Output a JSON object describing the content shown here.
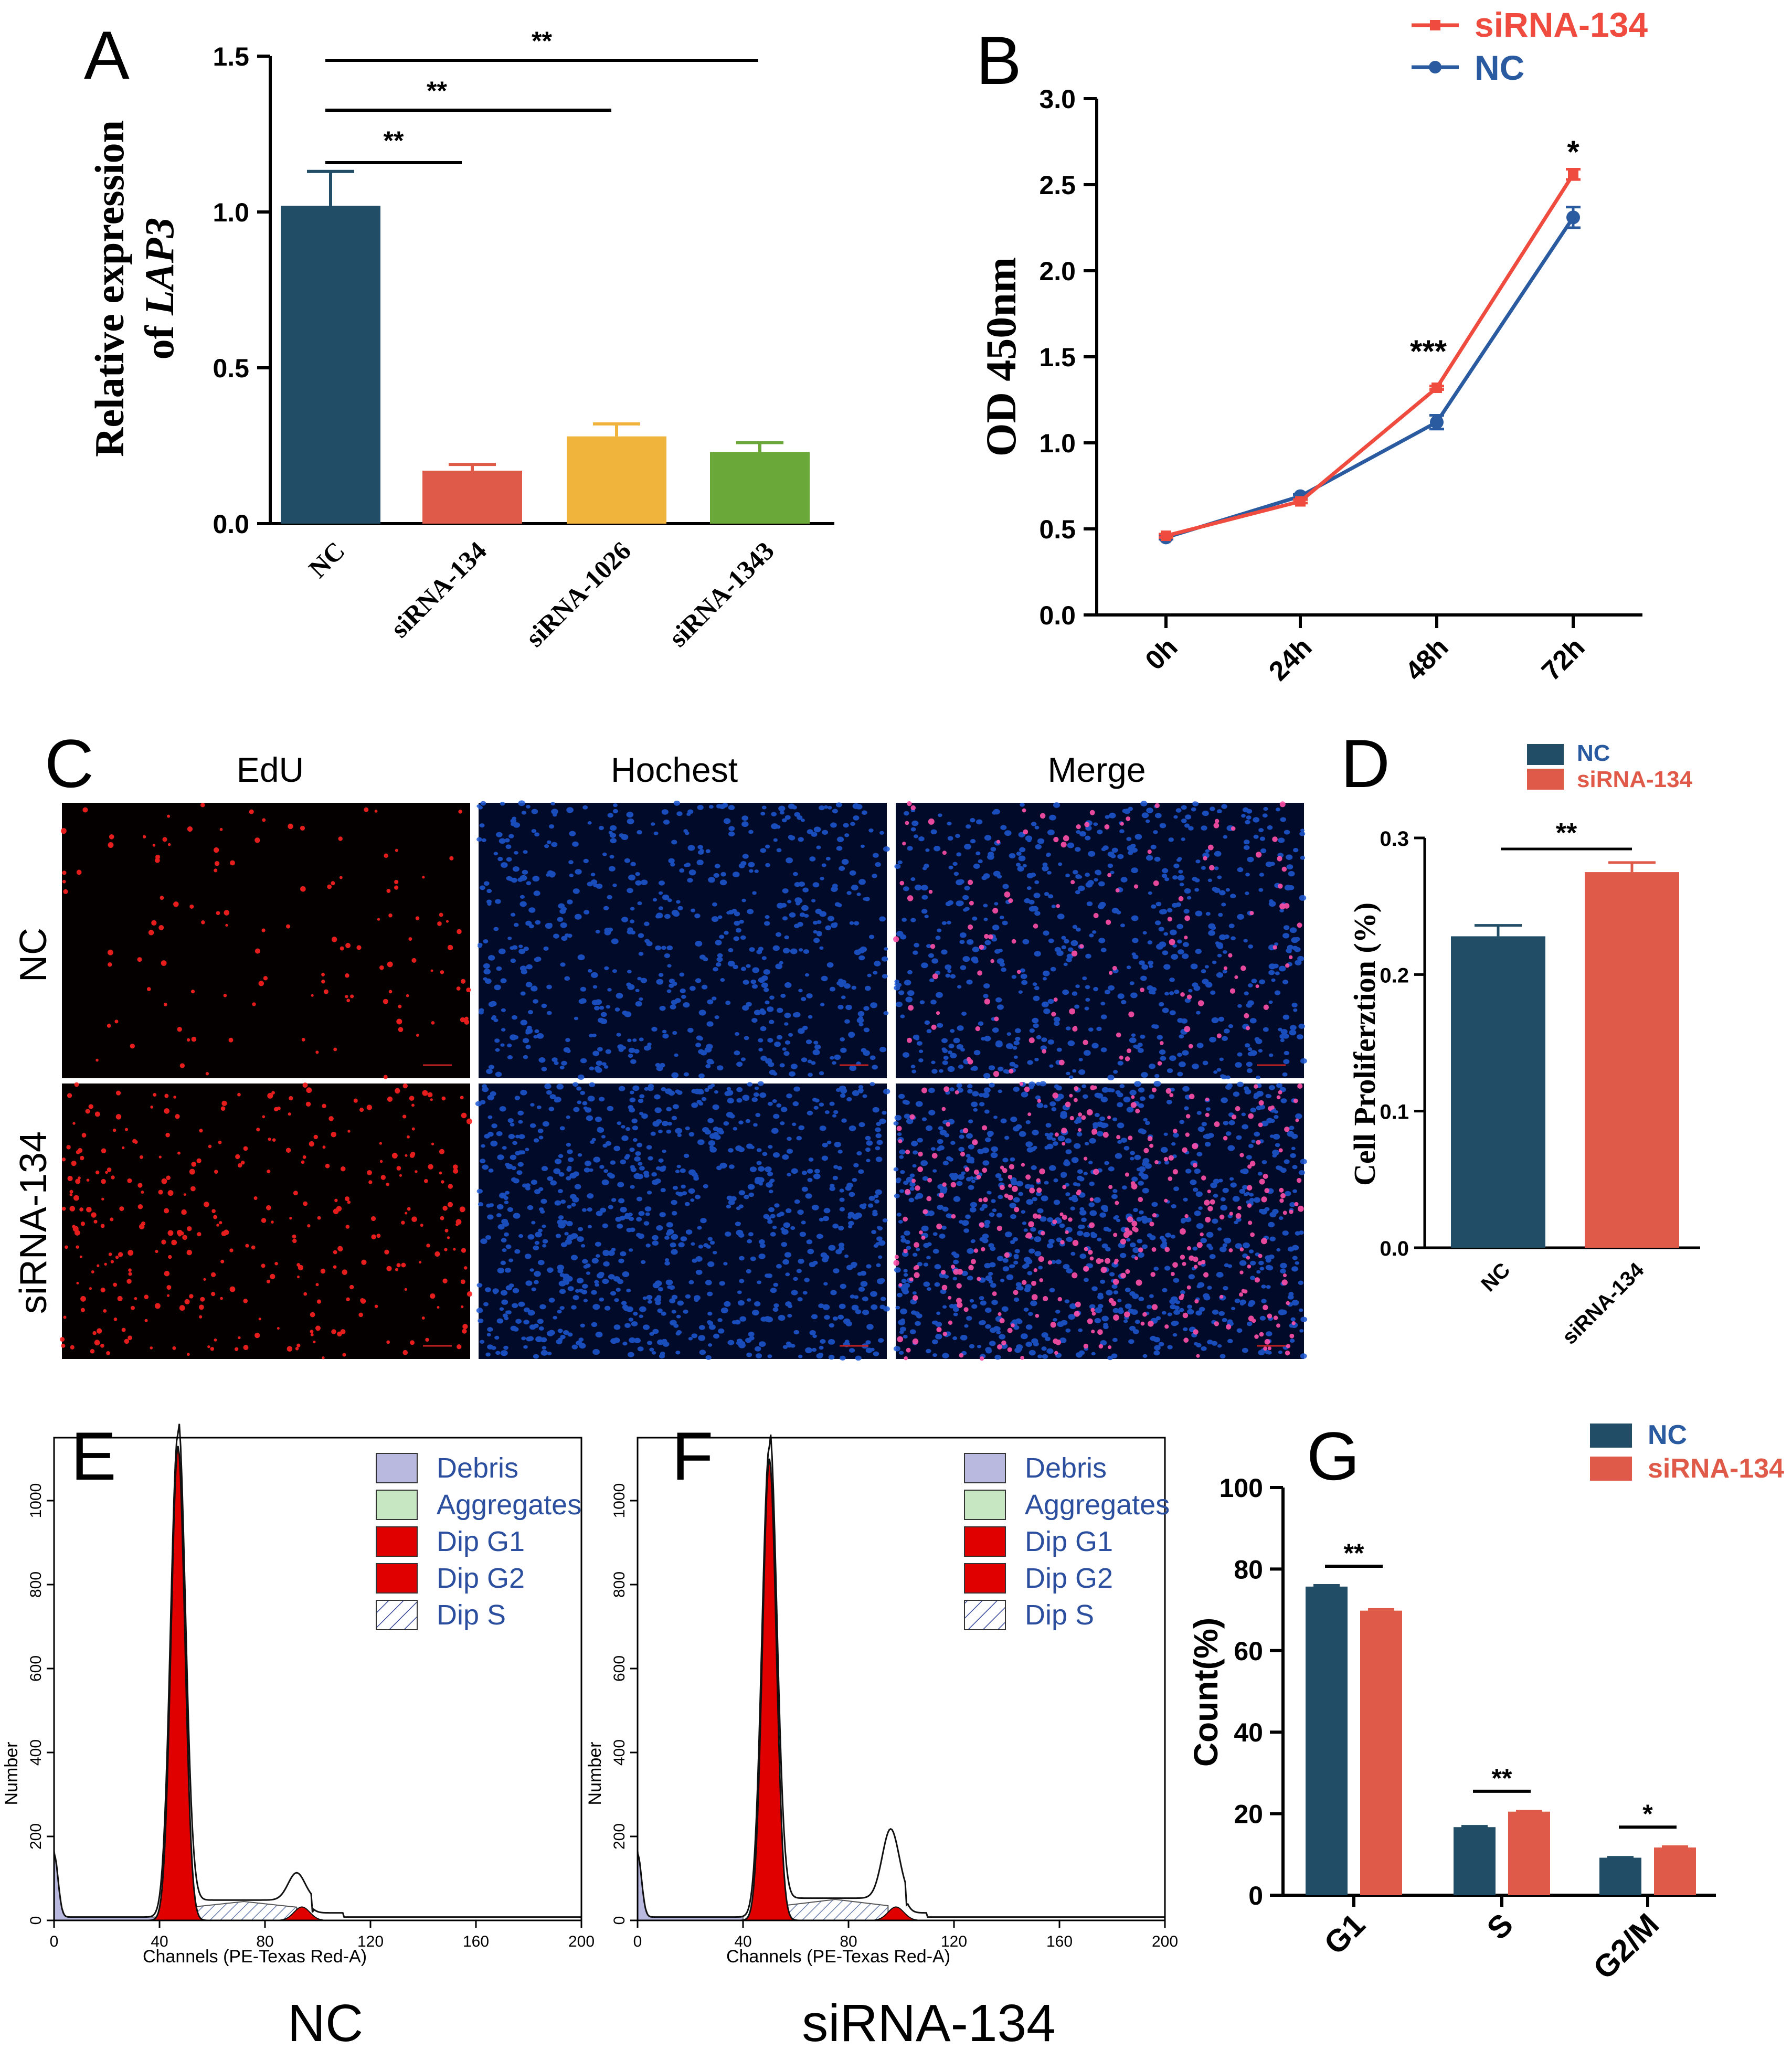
{
  "colors": {
    "nc": "#214e66",
    "sirna134": "#e05a4a",
    "sirna1026": "#f0b43c",
    "sirna1343": "#6aa839",
    "flow_red": "#e10000",
    "debris": "#b9b9df",
    "aggregates": "#c7e6c2",
    "line_nc": "#2a5aa0",
    "line_si": "#ef4b3f"
  },
  "panels": {
    "A": {
      "letter": "A"
    },
    "B": {
      "letter": "B"
    },
    "C": {
      "letter": "C",
      "col_headers": [
        "EdU",
        "Hochest",
        "Merge"
      ],
      "row_labels": [
        "NC",
        "siRNA-134"
      ]
    },
    "D": {
      "letter": "D"
    },
    "E": {
      "letter": "E",
      "bottom_label": "NC"
    },
    "F": {
      "letter": "F",
      "bottom_label": "siRNA-134"
    },
    "G": {
      "letter": "G"
    }
  },
  "chart_data": [
    {
      "id": "A",
      "type": "bar",
      "categories": [
        "NC",
        "siRNA-134",
        "siRNA-1026",
        "siRNA-1343"
      ],
      "values": [
        1.02,
        0.17,
        0.28,
        0.23
      ],
      "errors": [
        0.11,
        0.02,
        0.04,
        0.03
      ],
      "ylabel_line1": "Relative expression",
      "ylabel_line2_prefix": "of ",
      "ylabel_line2_italic": "LAP3",
      "ylim": [
        0,
        1.5
      ],
      "yticks": [
        "0.0",
        "0.5",
        "1.0",
        "1.5"
      ],
      "significance": [
        {
          "from": "NC",
          "to": "siRNA-134",
          "label": "**"
        },
        {
          "from": "NC",
          "to": "siRNA-1026",
          "label": "**"
        },
        {
          "from": "NC",
          "to": "siRNA-1343",
          "label": "**"
        }
      ]
    },
    {
      "id": "B",
      "type": "line",
      "x": [
        "0h",
        "24h",
        "48h",
        "72h"
      ],
      "series": [
        {
          "name": "siRNA-134",
          "values": [
            0.46,
            0.66,
            1.32,
            2.56
          ],
          "errors": [
            0.01,
            0.01,
            0.01,
            0.03
          ]
        },
        {
          "name": "NC",
          "values": [
            0.45,
            0.69,
            1.12,
            2.31
          ],
          "errors": [
            0.01,
            0.01,
            0.04,
            0.06
          ]
        }
      ],
      "ylabel": "OD 450nm",
      "ylim": [
        0,
        3.0
      ],
      "yticks": [
        "0.0",
        "0.5",
        "1.0",
        "1.5",
        "2.0",
        "2.5",
        "3.0"
      ],
      "annotations": [
        {
          "x": "48h",
          "label": "***"
        },
        {
          "x": "72h",
          "label": "*"
        }
      ]
    },
    {
      "id": "D",
      "type": "bar",
      "categories": [
        "NC",
        "siRNA-134"
      ],
      "values": [
        0.228,
        0.275
      ],
      "errors": [
        0.008,
        0.007
      ],
      "ylabel": "Cell Proliferztion (%)",
      "ylim": [
        0,
        0.3
      ],
      "yticks": [
        "0.0",
        "0.1",
        "0.2",
        "0.3"
      ],
      "legend": [
        "NC",
        "siRNA-134"
      ],
      "significance": [
        {
          "from": "NC",
          "to": "siRNA-134",
          "label": "**"
        }
      ]
    },
    {
      "id": "E",
      "type": "area",
      "xlabel": "Channels (PE-Texas Red-A)",
      "ylabel": "Number",
      "xticks": [
        "0",
        "40",
        "80",
        "120",
        "160",
        "200"
      ],
      "yticks": [
        "0",
        "200",
        "400",
        "600",
        "800",
        "1000"
      ],
      "xlim": [
        0,
        200
      ],
      "ylim": [
        0,
        1150
      ],
      "g1_peak": {
        "x": 47,
        "y": 1130
      },
      "s_band": {
        "x": [
          52,
          92
        ],
        "y": 45
      },
      "g2_peak": {
        "x": 92,
        "y": 65
      },
      "legend": [
        "Debris",
        "Aggregates",
        "Dip G1",
        "Dip G2",
        "Dip S"
      ]
    },
    {
      "id": "F",
      "type": "area",
      "xlabel": "Channels (PE-Texas Red-A)",
      "ylabel": "Number",
      "xticks": [
        "0",
        "40",
        "80",
        "120",
        "160",
        "200"
      ],
      "yticks": [
        "0",
        "200",
        "400",
        "600",
        "800",
        "1000"
      ],
      "xlim": [
        0,
        200
      ],
      "ylim": [
        0,
        1150
      ],
      "g1_peak": {
        "x": 50,
        "y": 1100
      },
      "s_band": {
        "x": [
          55,
          95
        ],
        "y": 50
      },
      "g2_peak": {
        "x": 96,
        "y": 165
      },
      "legend": [
        "Debris",
        "Aggregates",
        "Dip G1",
        "Dip G2",
        "Dip S"
      ]
    },
    {
      "id": "G",
      "type": "bar",
      "categories": [
        "G1",
        "S",
        "G2/M"
      ],
      "series": [
        {
          "name": "NC",
          "values": [
            75.7,
            16.7,
            9.2
          ],
          "errors": [
            0.3,
            0.2,
            0.1
          ]
        },
        {
          "name": "siRNA-134",
          "values": [
            69.8,
            20.5,
            11.7
          ],
          "errors": [
            0.3,
            0.1,
            0.2
          ]
        }
      ],
      "ylabel": "Count(%)",
      "ylim": [
        0,
        100
      ],
      "yticks": [
        "0",
        "20",
        "40",
        "60",
        "80",
        "100"
      ],
      "significance": [
        {
          "category": "G1",
          "label": "**"
        },
        {
          "category": "S",
          "label": "**"
        },
        {
          "category": "G2/M",
          "label": "*"
        }
      ]
    }
  ]
}
